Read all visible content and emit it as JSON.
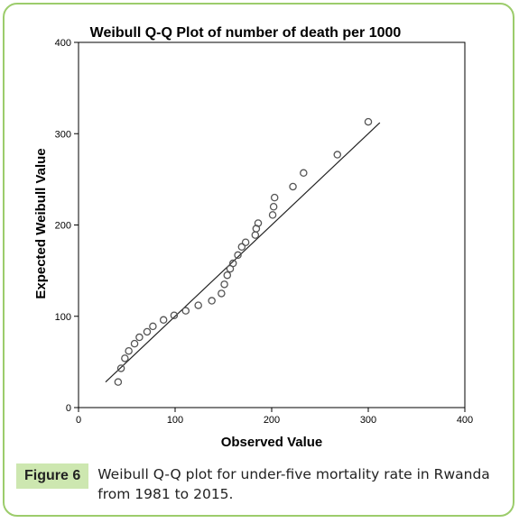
{
  "figure": {
    "badge": "Figure 6",
    "caption": "Weibull Q-Q plot for under-five mortality rate in Rwanda from 1981 to 2015."
  },
  "chart_data": {
    "type": "scatter",
    "title": "Weibull Q-Q Plot of number of death per 1000",
    "xlabel": "Observed Value",
    "ylabel": "Expected Weibull Value",
    "xlim": [
      0,
      400
    ],
    "ylim": [
      0,
      400
    ],
    "xticks": [
      "0",
      "100",
      "200",
      "300",
      "400"
    ],
    "yticks": [
      "0",
      "100",
      "200",
      "300",
      "400"
    ],
    "grid": false,
    "points": [
      {
        "x": 41,
        "y": 28
      },
      {
        "x": 44,
        "y": 43
      },
      {
        "x": 48,
        "y": 54
      },
      {
        "x": 52,
        "y": 62
      },
      {
        "x": 58,
        "y": 70
      },
      {
        "x": 63,
        "y": 77
      },
      {
        "x": 71,
        "y": 83
      },
      {
        "x": 77,
        "y": 89
      },
      {
        "x": 88,
        "y": 96
      },
      {
        "x": 99,
        "y": 101
      },
      {
        "x": 111,
        "y": 106
      },
      {
        "x": 124,
        "y": 112
      },
      {
        "x": 138,
        "y": 117
      },
      {
        "x": 148,
        "y": 125
      },
      {
        "x": 151,
        "y": 135
      },
      {
        "x": 154,
        "y": 145
      },
      {
        "x": 157,
        "y": 152
      },
      {
        "x": 160,
        "y": 158
      },
      {
        "x": 165,
        "y": 167
      },
      {
        "x": 169,
        "y": 176
      },
      {
        "x": 173,
        "y": 181
      },
      {
        "x": 183,
        "y": 189
      },
      {
        "x": 184,
        "y": 196
      },
      {
        "x": 186,
        "y": 202
      },
      {
        "x": 201,
        "y": 211
      },
      {
        "x": 202,
        "y": 220
      },
      {
        "x": 203,
        "y": 230
      },
      {
        "x": 222,
        "y": 242
      },
      {
        "x": 233,
        "y": 257
      },
      {
        "x": 268,
        "y": 277
      },
      {
        "x": 300,
        "y": 313
      }
    ],
    "reference_line": {
      "x": [
        28,
        312
      ],
      "y": [
        28,
        312
      ]
    }
  }
}
